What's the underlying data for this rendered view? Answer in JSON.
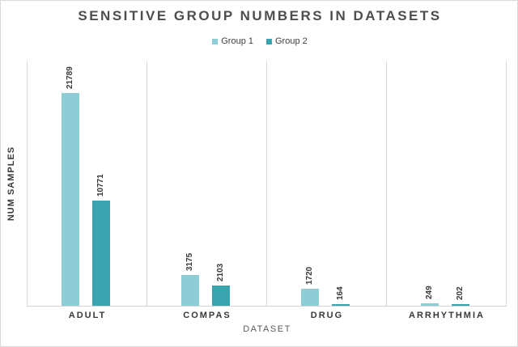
{
  "chart_data": {
    "type": "bar",
    "title": "SENSITIVE GROUP NUMBERS IN DATASETS",
    "xlabel": "DATASET",
    "ylabel": "NUM SAMPLES",
    "categories": [
      "ADULT",
      "COMPAS",
      "DRUG",
      "ARRHYTHMIA"
    ],
    "series": [
      {
        "name": "Group 1",
        "color": "#8fcdd6",
        "values": [
          21789,
          3175,
          1720,
          249
        ]
      },
      {
        "name": "Group 2",
        "color": "#3aa4ae",
        "values": [
          10771,
          2103,
          164,
          202
        ]
      }
    ],
    "ylim": [
      0,
      25000
    ],
    "y_ticks_visible": false,
    "value_labels": true,
    "value_label_rotation": -90,
    "legend_position": "top",
    "grid": "vertical-category-separators",
    "colors": {
      "title_text": "#4d4d4d",
      "axis_text": "#383838",
      "muted_text": "#595959",
      "axis_line": "#d9d9d9",
      "border": "#d9d9d9"
    }
  }
}
